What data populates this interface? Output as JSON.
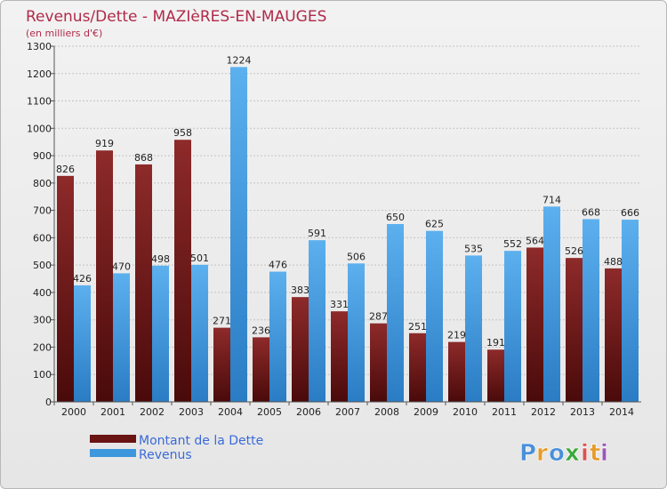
{
  "chart_data": {
    "type": "bar",
    "title": "Revenus/Dette - MAZIèRES-EN-MAUGES",
    "subtitle": "(en milliers d'€)",
    "categories": [
      "2000",
      "2001",
      "2002",
      "2003",
      "2004",
      "2005",
      "2006",
      "2007",
      "2008",
      "2009",
      "2010",
      "2011",
      "2012",
      "2013",
      "2014"
    ],
    "series": [
      {
        "name": "Montant de la Dette",
        "color": "#7a1e1e",
        "values": [
          826,
          919,
          868,
          958,
          271,
          236,
          383,
          331,
          287,
          251,
          219,
          191,
          564,
          526,
          488
        ]
      },
      {
        "name": "Revenus",
        "color": "#3d97dc",
        "values": [
          426,
          470,
          498,
          501,
          1224,
          476,
          591,
          506,
          650,
          625,
          535,
          552,
          714,
          668,
          666
        ]
      }
    ],
    "ylim": [
      0,
      1300
    ],
    "yticks": [
      0,
      100,
      200,
      300,
      400,
      500,
      600,
      700,
      800,
      900,
      1000,
      1100,
      1200,
      1300
    ],
    "grid": true,
    "legend_position": "bottom-left"
  },
  "logo": {
    "letters": [
      "P",
      "r",
      "o",
      "x",
      "i",
      "t",
      "i"
    ],
    "colors": [
      "#4a90d9",
      "#e69b2a",
      "#4a90d9",
      "#3aa83a",
      "#d9534f",
      "#e69b2a",
      "#9b59b6"
    ]
  }
}
